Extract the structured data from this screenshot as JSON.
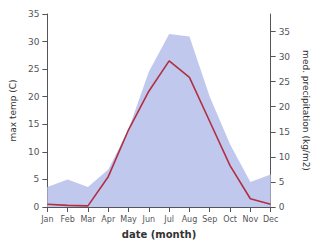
{
  "chart_data": {
    "type": "line",
    "xlabel": "date (month)",
    "ylabel": "max temp (C)",
    "y2label": "med. precipitation (kg/m2)",
    "categories": [
      "Jan",
      "Feb",
      "Mar",
      "Apr",
      "May",
      "Jun",
      "Jul",
      "Aug",
      "Sep",
      "Oct",
      "Nov",
      "Dec"
    ],
    "series": [
      {
        "type": "area",
        "color": "#c0c8ee",
        "axis": "y2",
        "values": [
          4.0,
          5.5,
          4.0,
          7.5,
          15.5,
          27.0,
          34.5,
          34.0,
          22.0,
          12.5,
          5.0,
          6.5
        ]
      },
      {
        "type": "line",
        "color": "#b03040",
        "values": [
          0.5,
          0.3,
          0.2,
          5.5,
          14.0,
          21.0,
          26.5,
          23.5,
          15.5,
          7.5,
          1.5,
          0.5
        ]
      }
    ],
    "ylim": [
      0,
      35
    ],
    "yticks": [
      0,
      5,
      10,
      15,
      20,
      25,
      30,
      35
    ],
    "y2lim": [
      0,
      38.5
    ],
    "y2ticks": [
      0,
      5,
      10,
      15,
      20,
      25,
      30,
      35
    ],
    "grid": false
  }
}
